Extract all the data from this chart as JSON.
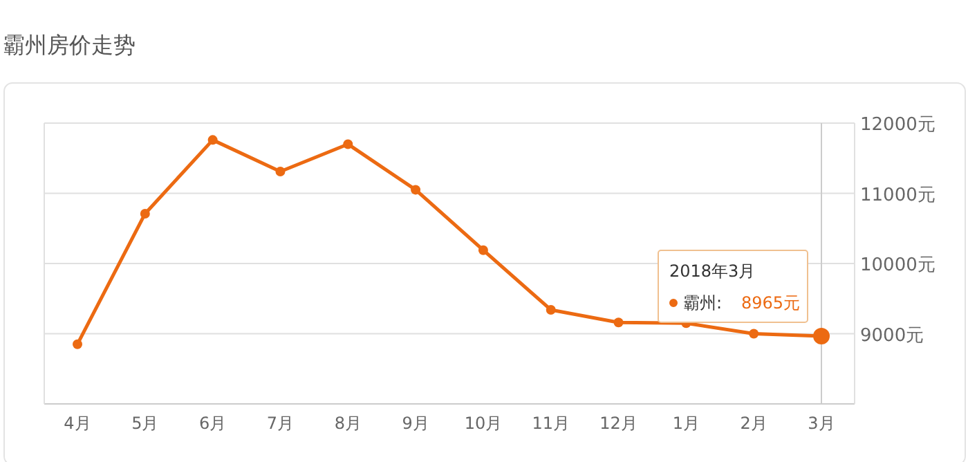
{
  "chart_data": {
    "type": "line",
    "title": "霸州房价走势",
    "categories": [
      "4月",
      "5月",
      "6月",
      "7月",
      "8月",
      "9月",
      "10月",
      "11月",
      "12月",
      "1月",
      "2月",
      "3月"
    ],
    "series": [
      {
        "color": "#ec6a12",
        "values": [
          8850,
          10710,
          11760,
          11310,
          11700,
          11050,
          10190,
          9340,
          9160,
          9150,
          9000,
          8965
        ]
      }
    ],
    "annotations": [
      "2018年3月",
      "霸州:",
      "8965元"
    ],
    "ref_lines": [
      {
        "axis": "x",
        "value": "3月",
        "color": "#cccccc"
      }
    ],
    "ylim": [
      8000,
      12000
    ],
    "yticks": [
      {
        "value": 8000,
        "label": null
      },
      {
        "value": 9000,
        "label": "9000元"
      },
      {
        "value": 10000,
        "label": "10000元"
      },
      {
        "value": 11000,
        "label": "11000元"
      },
      {
        "value": 12000,
        "label": "12000元"
      }
    ],
    "grid": "y",
    "marker": "circle",
    "line_style": "solid"
  }
}
